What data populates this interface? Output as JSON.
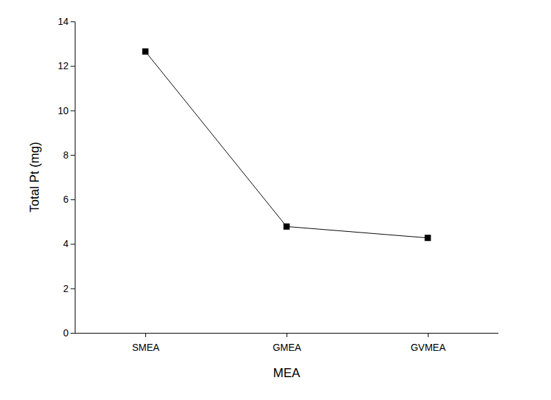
{
  "chart_data": {
    "type": "line",
    "x_label": "MEA",
    "y_label": "Total Pt (mg)",
    "categories": [
      "SMEA",
      "GMEA",
      "GVMEA"
    ],
    "values": [
      12.65,
      4.78,
      4.27
    ],
    "color": "#000000",
    "marker": "square",
    "line_style": "solid",
    "ylim": [
      0,
      14
    ],
    "yticks": [
      0,
      2,
      4,
      6,
      8,
      10,
      12,
      14
    ],
    "grid": false
  }
}
